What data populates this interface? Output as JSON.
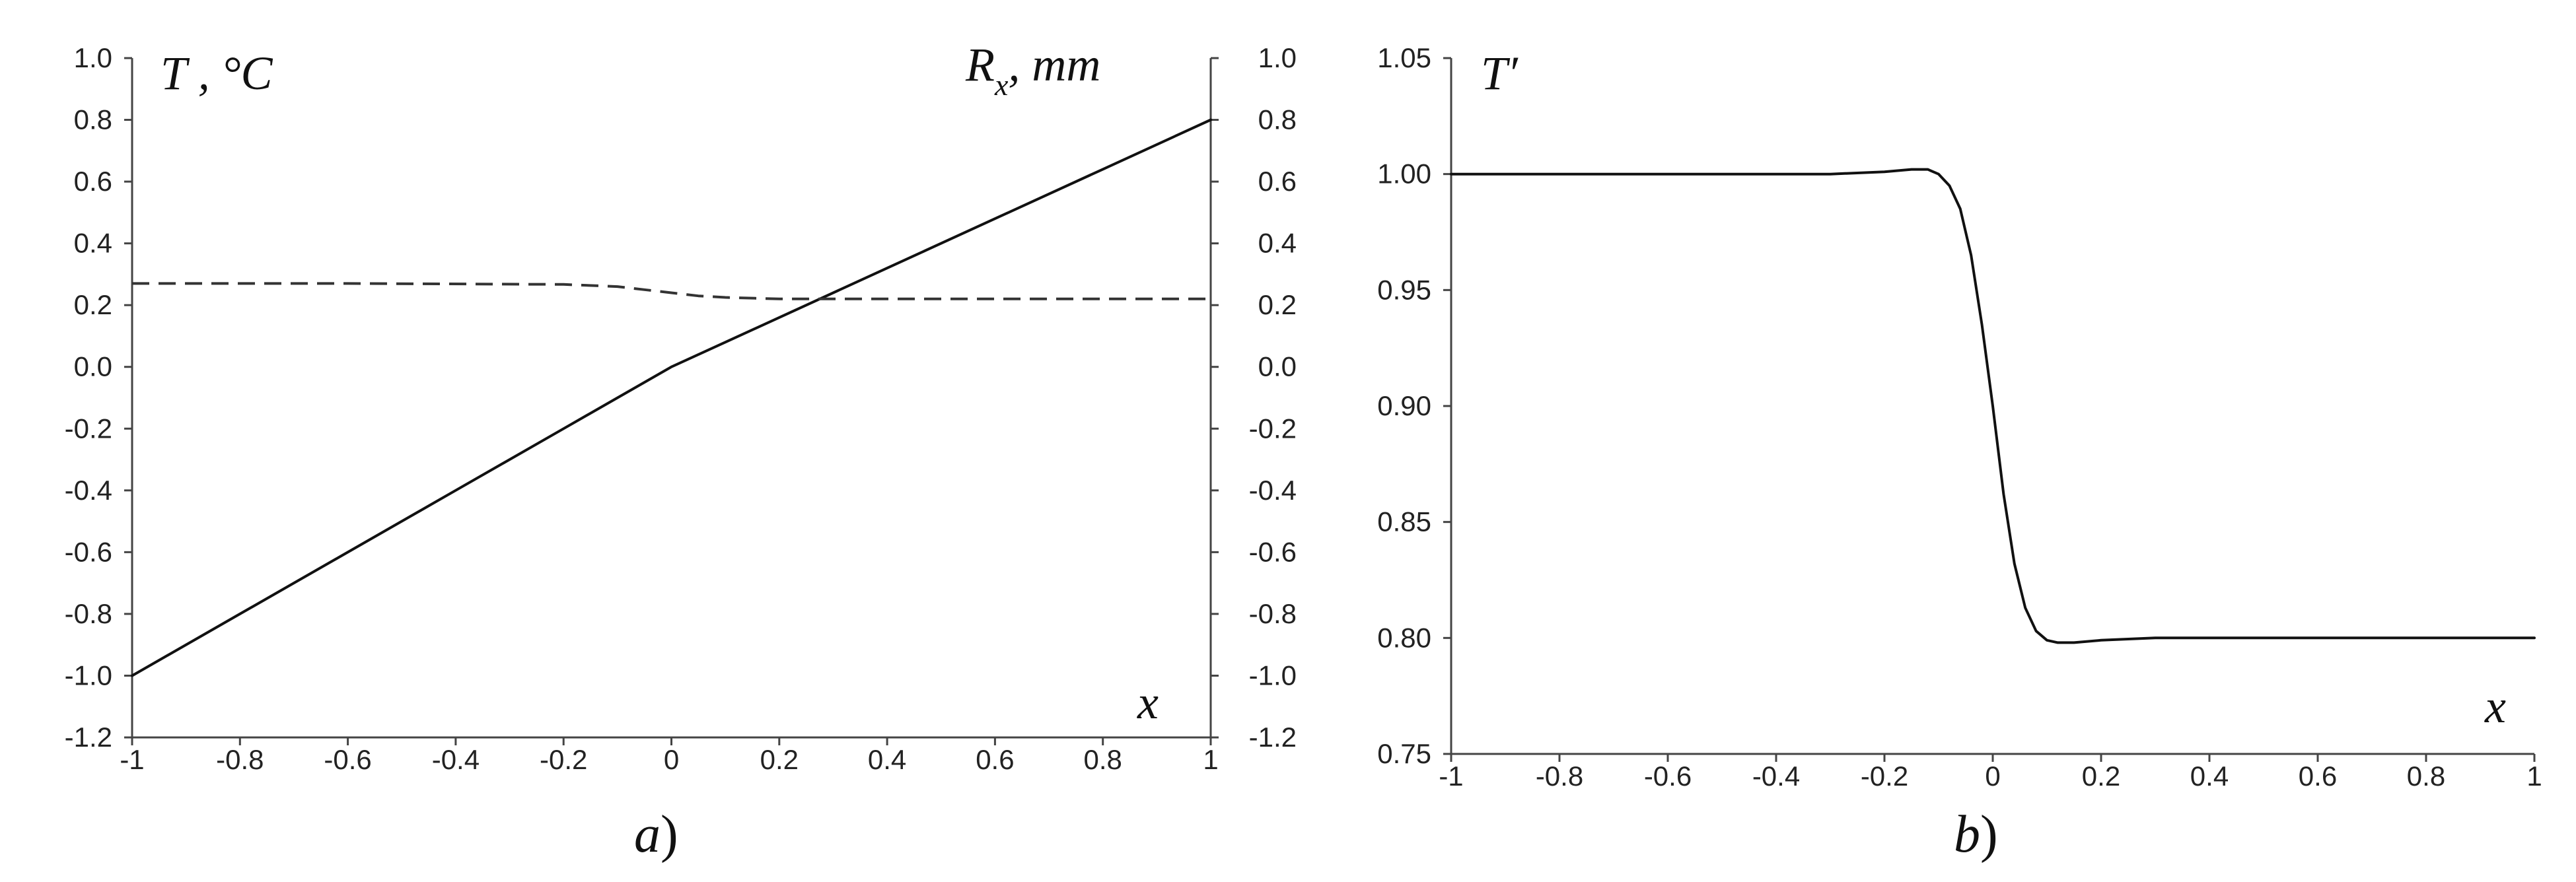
{
  "colors": {
    "line": "#111111",
    "axis": "#444444",
    "background": "#ffffff"
  },
  "chart_data": [
    {
      "type": "line",
      "panel_label": "a)",
      "xlabel": "x",
      "ylabel_left": "T , °C",
      "ylabel_right": "R",
      "ylabel_right_sub": "x",
      "ylabel_right_unit": ", mm",
      "xlim": [
        -1,
        1
      ],
      "ylim": [
        -1.2,
        1.0
      ],
      "x_ticks": [
        "-1",
        "-0.8",
        "-0.6",
        "-0.4",
        "-0.2",
        "0",
        "0.2",
        "0.4",
        "0.6",
        "0.8",
        "1"
      ],
      "y_ticks_left": [
        "-1.2",
        "-1.0",
        "-0.8",
        "-0.6",
        "-0.4",
        "-0.2",
        "0.0",
        "0.2",
        "0.4",
        "0.6",
        "0.8",
        "1.0"
      ],
      "y_ticks_right": [
        "-1.2",
        "-1.0",
        "-0.8",
        "-0.6",
        "-0.4",
        "-0.2",
        "0.0",
        "0.2",
        "0.4",
        "0.6",
        "0.8",
        "1.0"
      ],
      "grid": false,
      "series": [
        {
          "style": "solid",
          "x": [
            -1.0,
            -0.8,
            -0.6,
            -0.4,
            -0.2,
            -0.1,
            0.0,
            0.1,
            0.2,
            0.4,
            0.6,
            0.8,
            1.0
          ],
          "y": [
            -1.0,
            -0.8,
            -0.6,
            -0.4,
            -0.2,
            -0.1,
            0.0,
            0.08,
            0.16,
            0.32,
            0.48,
            0.64,
            0.8
          ]
        },
        {
          "style": "dashed",
          "x": [
            -1.0,
            -0.6,
            -0.2,
            -0.1,
            -0.05,
            0.0,
            0.05,
            0.1,
            0.2,
            0.4,
            0.6,
            0.8,
            1.0
          ],
          "y": [
            0.27,
            0.27,
            0.267,
            0.26,
            0.25,
            0.24,
            0.23,
            0.225,
            0.22,
            0.22,
            0.22,
            0.22,
            0.22
          ]
        }
      ]
    },
    {
      "type": "line",
      "panel_label": "b)",
      "xlabel": "x",
      "ylabel": "T′",
      "xlim": [
        -1,
        1
      ],
      "ylim": [
        0.75,
        1.05
      ],
      "x_ticks": [
        "-1",
        "-0.8",
        "-0.6",
        "-0.4",
        "-0.2",
        "0",
        "0.2",
        "0.4",
        "0.6",
        "0.8",
        "1"
      ],
      "y_ticks": [
        "0.75",
        "0.80",
        "0.85",
        "0.90",
        "0.95",
        "1.00",
        "1.05"
      ],
      "grid": false,
      "series": [
        {
          "style": "solid",
          "x": [
            -1.0,
            -0.5,
            -0.3,
            -0.2,
            -0.15,
            -0.12,
            -0.1,
            -0.08,
            -0.06,
            -0.04,
            -0.02,
            0.0,
            0.02,
            0.04,
            0.06,
            0.08,
            0.1,
            0.12,
            0.15,
            0.2,
            0.3,
            0.5,
            1.0
          ],
          "y": [
            1.0,
            1.0,
            1.0,
            1.001,
            1.002,
            1.002,
            1.0,
            0.995,
            0.985,
            0.965,
            0.935,
            0.9,
            0.862,
            0.832,
            0.813,
            0.803,
            0.799,
            0.798,
            0.798,
            0.799,
            0.8,
            0.8,
            0.8
          ]
        }
      ]
    }
  ]
}
